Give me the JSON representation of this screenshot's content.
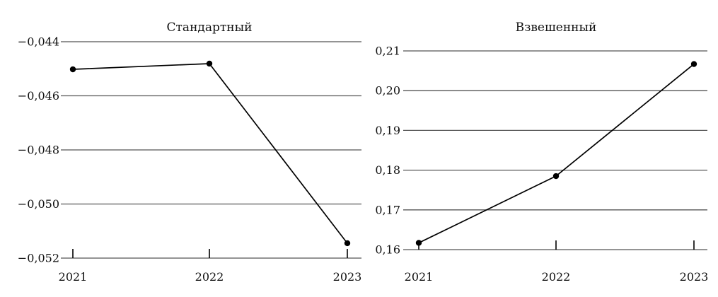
{
  "chart_data": [
    {
      "type": "line",
      "title": "Стандартный",
      "categories": [
        "2021",
        "2022",
        "2023"
      ],
      "values": [
        -0.04502,
        -0.04481,
        -0.05145
      ],
      "ylim": [
        -0.052,
        -0.044
      ],
      "yticks": [
        -0.044,
        -0.046,
        -0.048,
        -0.05,
        -0.052
      ],
      "ytick_labels": [
        "−0,044",
        "−0,046",
        "−0,048",
        "−0,050",
        "−0,052"
      ],
      "grid": true,
      "xlabel": "",
      "ylabel": ""
    },
    {
      "type": "line",
      "title": "Взвешенный",
      "categories": [
        "2021",
        "2022",
        "2023"
      ],
      "values": [
        0.1617,
        0.1785,
        0.2067
      ],
      "ylim": [
        0.16,
        0.21
      ],
      "yticks": [
        0.21,
        0.2,
        0.19,
        0.18,
        0.17,
        0.16
      ],
      "ytick_labels": [
        "0,21",
        "0,20",
        "0,19",
        "0,18",
        "0,17",
        "0,16"
      ],
      "grid": true,
      "xlabel": "",
      "ylabel": ""
    }
  ]
}
